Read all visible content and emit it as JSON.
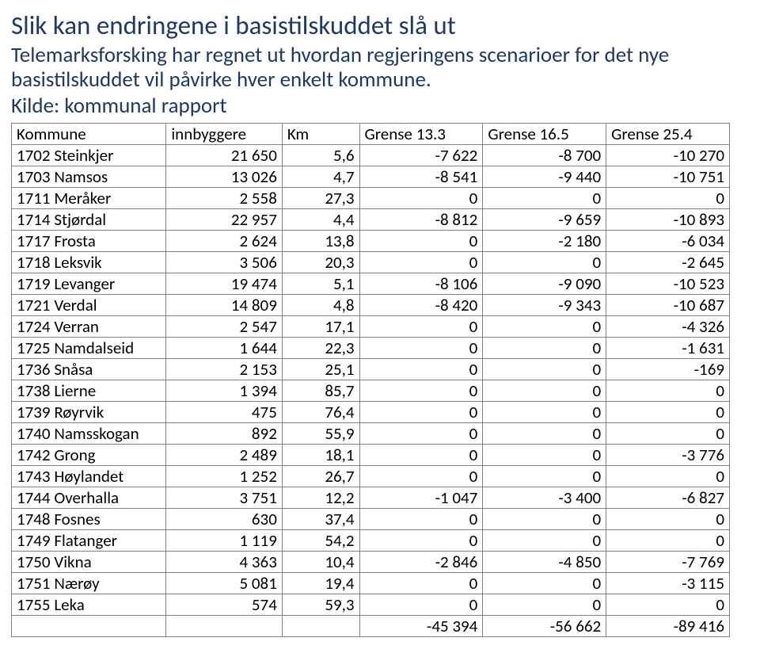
{
  "title": "Slik kan endringene i basistilskuddet slå ut",
  "subtitle": "Telemarksforsking har regnet ut hvordan regjeringens scenarioer for det nye basistilskuddet vil påvirke hver enkelt kommune.",
  "source": "Kilde: kommunal rapport",
  "columns": [
    "Kommune",
    "innbyggere",
    "Km",
    "Grense 13.3",
    "Grense 16.5",
    "Grense 25.4"
  ],
  "rows": [
    {
      "code": "1702",
      "name": "Steinkjer",
      "pop": "21 650",
      "km": "5,6",
      "g1": "-7 622",
      "g2": "-8 700",
      "g3": "-10 270"
    },
    {
      "code": "1703",
      "name": "Namsos",
      "pop": "13 026",
      "km": "4,7",
      "g1": "-8 541",
      "g2": "-9 440",
      "g3": "-10 751"
    },
    {
      "code": "1711",
      "name": "Meråker",
      "pop": "2 558",
      "km": "27,3",
      "g1": "0",
      "g2": "0",
      "g3": "0"
    },
    {
      "code": "1714",
      "name": "Stjørdal",
      "pop": "22 957",
      "km": "4,4",
      "g1": "-8 812",
      "g2": "-9 659",
      "g3": "-10 893"
    },
    {
      "code": "1717",
      "name": "Frosta",
      "pop": "2 624",
      "km": "13,8",
      "g1": "0",
      "g2": "-2 180",
      "g3": "-6 034"
    },
    {
      "code": "1718",
      "name": "Leksvik",
      "pop": "3 506",
      "km": "20,3",
      "g1": "0",
      "g2": "0",
      "g3": "-2 645"
    },
    {
      "code": "1719",
      "name": "Levanger",
      "pop": "19 474",
      "km": "5,1",
      "g1": "-8 106",
      "g2": "-9 090",
      "g3": "-10 523"
    },
    {
      "code": "1721",
      "name": "Verdal",
      "pop": "14 809",
      "km": "4,8",
      "g1": "-8 420",
      "g2": "-9 343",
      "g3": "-10 687"
    },
    {
      "code": "1724",
      "name": "Verran",
      "pop": "2 547",
      "km": "17,1",
      "g1": "0",
      "g2": "0",
      "g3": "-4 326"
    },
    {
      "code": "1725",
      "name": "Namdalseid",
      "pop": "1 644",
      "km": "22,3",
      "g1": "0",
      "g2": "0",
      "g3": "-1 631"
    },
    {
      "code": "1736",
      "name": "Snåsa",
      "pop": "2 153",
      "km": "25,1",
      "g1": "0",
      "g2": "0",
      "g3": "-169"
    },
    {
      "code": "1738",
      "name": "Lierne",
      "pop": "1 394",
      "km": "85,7",
      "g1": "0",
      "g2": "0",
      "g3": "0"
    },
    {
      "code": "1739",
      "name": "Røyrvik",
      "pop": "475",
      "km": "76,4",
      "g1": "0",
      "g2": "0",
      "g3": "0"
    },
    {
      "code": "1740",
      "name": "Namsskogan",
      "pop": "892",
      "km": "55,9",
      "g1": "0",
      "g2": "0",
      "g3": "0"
    },
    {
      "code": "1742",
      "name": "Grong",
      "pop": "2 489",
      "km": "18,1",
      "g1": "0",
      "g2": "0",
      "g3": "-3 776"
    },
    {
      "code": "1743",
      "name": "Høylandet",
      "pop": "1 252",
      "km": "26,7",
      "g1": "0",
      "g2": "0",
      "g3": "0"
    },
    {
      "code": "1744",
      "name": "Overhalla",
      "pop": "3 751",
      "km": "12,2",
      "g1": "-1 047",
      "g2": "-3 400",
      "g3": "-6 827"
    },
    {
      "code": "1748",
      "name": "Fosnes",
      "pop": "630",
      "km": "37,4",
      "g1": "0",
      "g2": "0",
      "g3": "0"
    },
    {
      "code": "1749",
      "name": "Flatanger",
      "pop": "1 119",
      "km": "54,2",
      "g1": "0",
      "g2": "0",
      "g3": "0"
    },
    {
      "code": "1750",
      "name": "Vikna",
      "pop": "4 363",
      "km": "10,4",
      "g1": "-2 846",
      "g2": "-4 850",
      "g3": "-7 769"
    },
    {
      "code": "1751",
      "name": "Nærøy",
      "pop": "5 081",
      "km": "19,4",
      "g1": "0",
      "g2": "0",
      "g3": "-3 115"
    },
    {
      "code": "1755",
      "name": "Leka",
      "pop": "574",
      "km": "59,3",
      "g1": "0",
      "g2": "0",
      "g3": "0"
    }
  ],
  "totals": {
    "g1": "-45 394",
    "g2": "-56 662",
    "g3": "-89 416"
  }
}
